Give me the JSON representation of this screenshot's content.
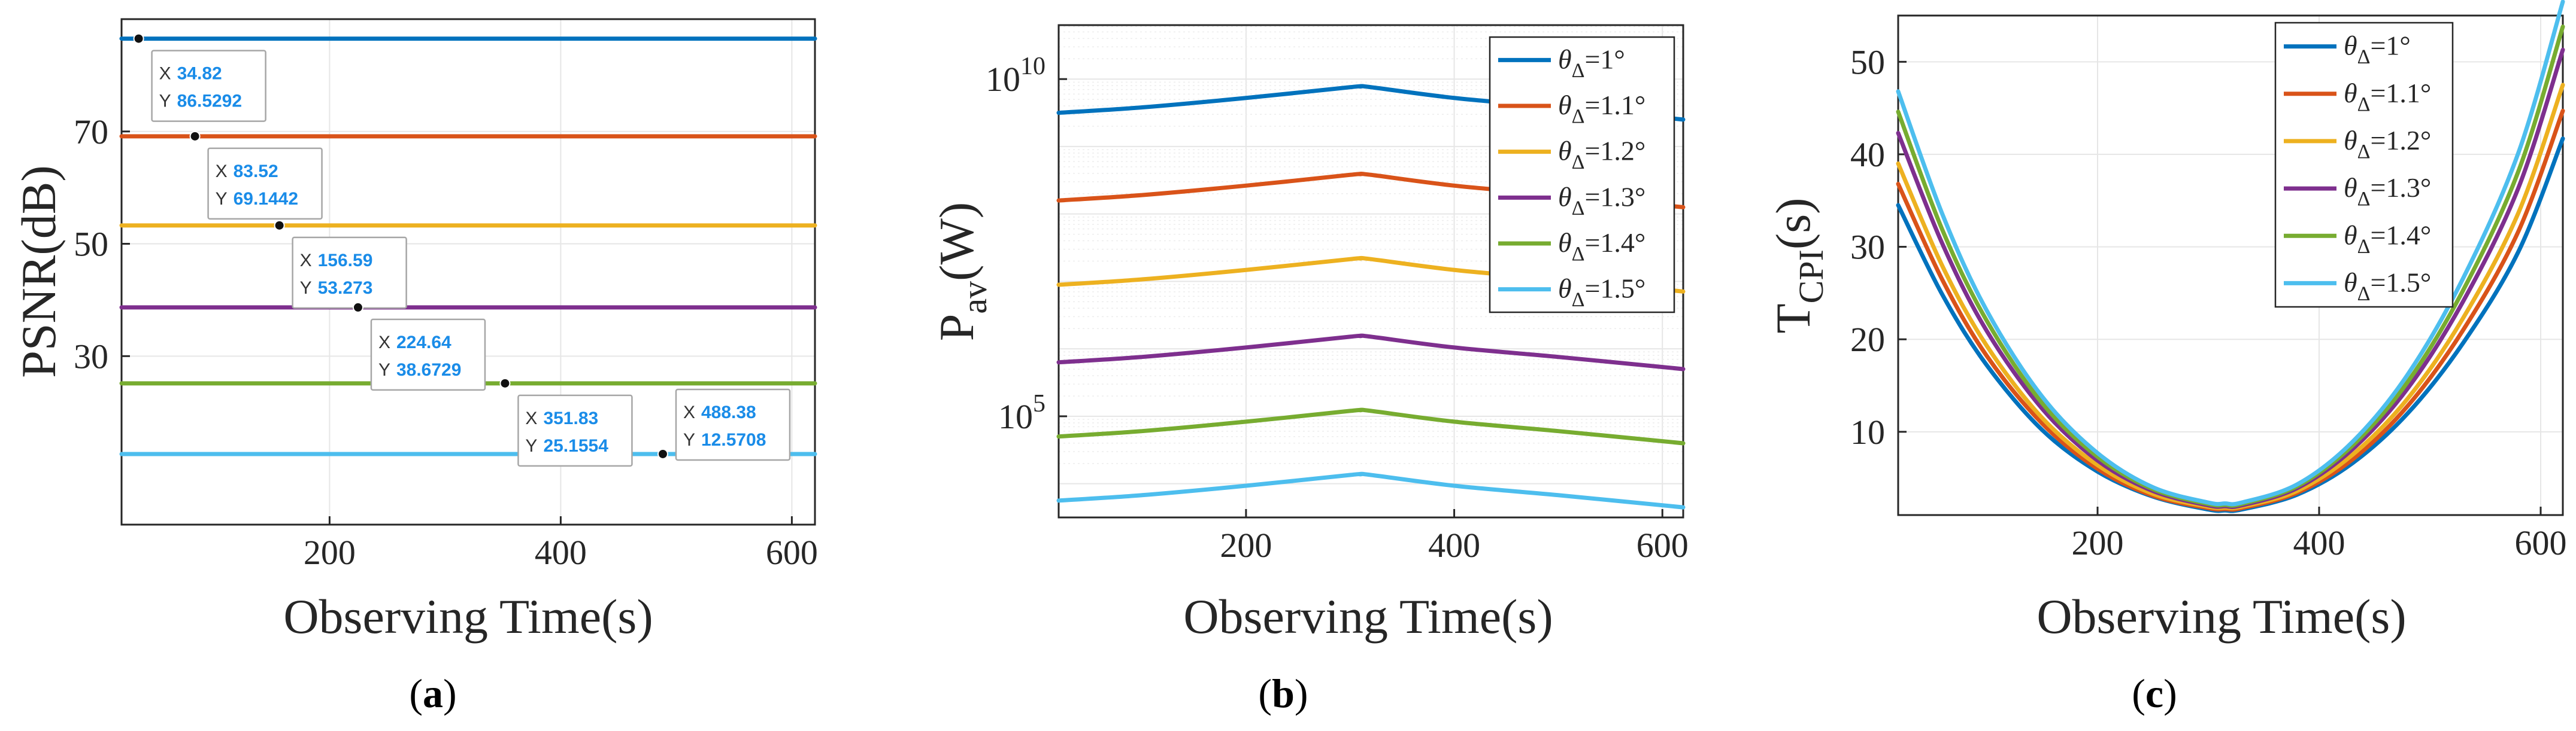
{
  "colors": {
    "series": [
      "#0072BD",
      "#D95319",
      "#EDB120",
      "#7E2F8E",
      "#77AC30",
      "#4DBEEE"
    ],
    "grid": "#e6e6e6",
    "axis": "#262626",
    "datatip_value": "#1a8ce8"
  },
  "chart_data": [
    {
      "id": "a",
      "type": "line",
      "caption": "a",
      "xlabel": "Observing Time(s)",
      "ylabel": "PSNR(dB)",
      "xlim": [
        20,
        620
      ],
      "ylim": [
        0,
        90
      ],
      "xticks": [
        200,
        400,
        600
      ],
      "yticks": [
        30,
        50,
        70
      ],
      "series": [
        {
          "name": "θΔ=1°",
          "values": [
            86.5292,
            86.5292
          ]
        },
        {
          "name": "θΔ=1.1°",
          "values": [
            69.1442,
            69.1442
          ]
        },
        {
          "name": "θΔ=1.2°",
          "values": [
            53.273,
            53.273
          ]
        },
        {
          "name": "θΔ=1.3°",
          "values": [
            38.6729,
            38.6729
          ]
        },
        {
          "name": "θΔ=1.4°",
          "values": [
            25.1554,
            25.1554
          ]
        },
        {
          "name": "θΔ=1.5°",
          "values": [
            12.5708,
            12.5708
          ]
        }
      ],
      "x": [
        20,
        620
      ],
      "datatips": [
        {
          "x_label": "X",
          "y_label": "Y",
          "x": "34.82",
          "y": "86.5292"
        },
        {
          "x_label": "X",
          "y_label": "Y",
          "x": "83.52",
          "y": "69.1442"
        },
        {
          "x_label": "X",
          "y_label": "Y",
          "x": "156.59",
          "y": "53.273"
        },
        {
          "x_label": "X",
          "y_label": "Y",
          "x": "224.64",
          "y": "38.6729"
        },
        {
          "x_label": "X",
          "y_label": "Y",
          "x": "351.83",
          "y": "25.1554"
        },
        {
          "x_label": "X",
          "y_label": "Y",
          "x": "488.38",
          "y": "12.5708"
        }
      ]
    },
    {
      "id": "b",
      "type": "line",
      "caption": "b",
      "xlabel": "Observing Time(s)",
      "ylabel_main": "P",
      "ylabel_sub": "av",
      "ylabel_tail": "(W)",
      "yscale": "log",
      "xlim": [
        20,
        620
      ],
      "ylim_log10": [
        3.5,
        10.8
      ],
      "xticks": [
        200,
        400,
        600
      ],
      "yticks": [
        {
          "base": "10",
          "exp": "5",
          "log10": 5
        },
        {
          "base": "10",
          "exp": "10",
          "log10": 10
        }
      ],
      "legend": {
        "placement": "top-right",
        "entries": [
          {
            "sym": "θ",
            "sub": "Δ",
            "text": "=1°"
          },
          {
            "sym": "θ",
            "sub": "Δ",
            "text": "=1.1°"
          },
          {
            "sym": "θ",
            "sub": "Δ",
            "text": "=1.2°"
          },
          {
            "sym": "θ",
            "sub": "Δ",
            "text": "=1.3°"
          },
          {
            "sym": "θ",
            "sub": "Δ",
            "text": "=1.4°"
          },
          {
            "sym": "θ",
            "sub": "Δ",
            "text": "=1.5°"
          }
        ]
      },
      "x": [
        20,
        100,
        200,
        300,
        310,
        320,
        400,
        500,
        620
      ],
      "series": [
        {
          "name": "θΔ=1°",
          "log10_values": [
            9.5,
            9.58,
            9.72,
            9.88,
            9.89,
            9.88,
            9.72,
            9.58,
            9.4
          ]
        },
        {
          "name": "θΔ=1.1°",
          "log10_values": [
            8.2,
            8.28,
            8.42,
            8.58,
            8.59,
            8.58,
            8.42,
            8.28,
            8.1
          ]
        },
        {
          "name": "θΔ=1.2°",
          "log10_values": [
            6.95,
            7.03,
            7.17,
            7.33,
            7.34,
            7.33,
            7.17,
            7.03,
            6.85
          ]
        },
        {
          "name": "θΔ=1.3°",
          "log10_values": [
            5.8,
            5.88,
            6.02,
            6.18,
            6.19,
            6.18,
            6.02,
            5.88,
            5.7
          ]
        },
        {
          "name": "θΔ=1.4°",
          "log10_values": [
            4.7,
            4.78,
            4.92,
            5.08,
            5.09,
            5.08,
            4.92,
            4.78,
            4.6
          ]
        },
        {
          "name": "θΔ=1.5°",
          "log10_values": [
            3.75,
            3.83,
            3.97,
            4.13,
            4.14,
            4.13,
            3.97,
            3.83,
            3.65
          ]
        }
      ]
    },
    {
      "id": "c",
      "type": "line",
      "caption": "c",
      "xlabel": "Observing Time(s)",
      "ylabel_main": "T",
      "ylabel_sub": "CPI",
      "ylabel_tail": "(s)",
      "xlim": [
        20,
        620
      ],
      "ylim": [
        1,
        55
      ],
      "xticks": [
        200,
        400,
        600
      ],
      "yticks": [
        10,
        20,
        30,
        40,
        50
      ],
      "legend": {
        "placement": "top-right",
        "entries": [
          {
            "sym": "θ",
            "sub": "Δ",
            "text": "=1°"
          },
          {
            "sym": "θ",
            "sub": "Δ",
            "text": "=1.1°"
          },
          {
            "sym": "θ",
            "sub": "Δ",
            "text": "=1.2°"
          },
          {
            "sym": "θ",
            "sub": "Δ",
            "text": "=1.3°"
          },
          {
            "sym": "θ",
            "sub": "Δ",
            "text": "=1.4°"
          },
          {
            "sym": "θ",
            "sub": "Δ",
            "text": "=1.5°"
          }
        ]
      },
      "x": [
        20,
        60,
        100,
        150,
        200,
        250,
        300,
        315,
        330,
        380,
        430,
        480,
        530,
        580,
        620
      ],
      "series": [
        {
          "name": "θΔ=1°",
          "values": [
            34.5,
            24.8,
            17.2,
            10.2,
            5.7,
            3.0,
            1.6,
            1.5,
            1.6,
            3.2,
            6.6,
            12.0,
            19.6,
            29.5,
            41.7
          ]
        },
        {
          "name": "θΔ=1.1°",
          "values": [
            36.8,
            26.4,
            18.2,
            10.9,
            6.0,
            3.1,
            1.75,
            1.65,
            1.75,
            3.4,
            7.0,
            12.8,
            21.0,
            31.7,
            44.7
          ]
        },
        {
          "name": "θΔ=1.2°",
          "values": [
            39.0,
            27.9,
            19.3,
            11.5,
            6.4,
            3.3,
            1.9,
            1.8,
            1.9,
            3.6,
            7.5,
            13.6,
            22.3,
            33.7,
            47.5
          ]
        },
        {
          "name": "θΔ=1.3°",
          "values": [
            42.3,
            30.3,
            20.9,
            12.5,
            6.9,
            3.6,
            2.05,
            1.95,
            2.05,
            3.9,
            8.1,
            14.7,
            24.1,
            36.4,
            51.3
          ]
        },
        {
          "name": "θΔ=1.4°",
          "values": [
            44.6,
            31.8,
            22.0,
            13.1,
            7.3,
            3.8,
            2.2,
            2.1,
            2.2,
            4.1,
            8.5,
            15.4,
            25.3,
            38.2,
            53.8
          ]
        },
        {
          "name": "θΔ=1.5°",
          "values": [
            46.8,
            33.5,
            23.1,
            13.8,
            7.7,
            4.0,
            2.35,
            2.25,
            2.35,
            4.3,
            8.9,
            16.2,
            26.6,
            40.2,
            56.5
          ]
        }
      ]
    }
  ]
}
